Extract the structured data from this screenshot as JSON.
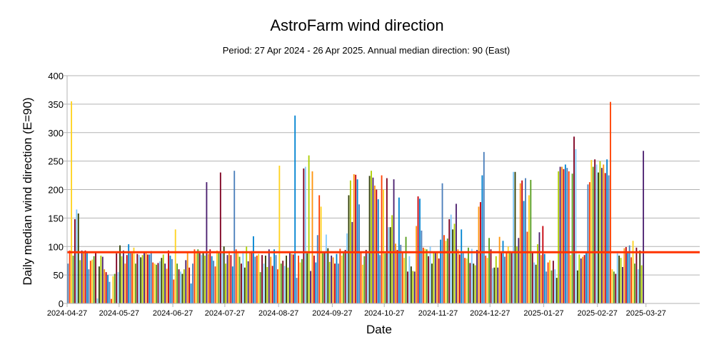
{
  "chart_data": {
    "type": "bar",
    "title": "AstroFarm wind direction",
    "subtitle": "Period: 27 Apr 2024 - 26 Apr 2025. Annual median direction: 90 (East)",
    "xlabel": "Date",
    "ylabel": "Daily median wind direction (E=90)",
    "ylim": [
      0,
      400
    ],
    "yticks": [
      0,
      50,
      100,
      150,
      200,
      250,
      300,
      350,
      400
    ],
    "x_start": "2024-04-27",
    "x_end": "2025-04-26",
    "xticks": [
      "2024-04-27",
      "2024-05-27",
      "2024-06-27",
      "2024-07-27",
      "2024-08-27",
      "2024-09-27",
      "2024-10-27",
      "2024-11-27",
      "2024-12-27",
      "2025-01-27",
      "2025-02-27",
      "2025-03-27"
    ],
    "grid": true,
    "legend": "none",
    "reference_line": {
      "value": 90,
      "color": "#ff3300"
    },
    "bar_colors": [
      "#4a7ebb",
      "#ff4000",
      "#ffd320",
      "#579d1c",
      "#7e0021",
      "#83caff",
      "#314004",
      "#aecf00",
      "#4b1f6f",
      "#ff950e",
      "#c5000b",
      "#0084d1"
    ],
    "values": [
      70,
      93,
      355,
      84,
      148,
      165,
      158,
      76,
      93,
      89,
      93,
      91,
      60,
      75,
      77,
      83,
      90,
      9,
      65,
      84,
      82,
      60,
      55,
      50,
      38,
      8,
      48,
      52,
      88,
      55,
      102,
      83,
      93,
      70,
      85,
      104,
      90,
      88,
      98,
      70,
      87,
      85,
      81,
      85,
      90,
      90,
      86,
      86,
      92,
      72,
      70,
      68,
      71,
      74,
      80,
      86,
      70,
      61,
      93,
      84,
      78,
      42,
      130,
      70,
      60,
      56,
      52,
      60,
      76,
      90,
      63,
      35,
      70,
      95,
      92,
      95,
      92,
      85,
      90,
      84,
      213,
      87,
      95,
      83,
      75,
      65,
      93,
      90,
      230,
      88,
      100,
      70,
      85,
      92,
      85,
      65,
      233,
      95,
      90,
      82,
      70,
      92,
      63,
      100,
      74,
      90,
      92,
      118,
      82,
      84,
      87,
      55,
      85,
      70,
      84,
      64,
      95,
      82,
      66,
      95,
      85,
      60,
      242,
      70,
      75,
      66,
      84,
      63,
      90,
      87,
      86,
      330,
      45,
      84,
      72,
      78,
      237,
      240,
      88,
      260,
      57,
      232,
      84,
      72,
      120,
      190,
      170,
      88,
      90,
      121,
      97,
      73,
      84,
      81,
      70,
      87,
      70,
      96,
      84,
      90,
      94,
      123,
      190,
      216,
      143,
      227,
      226,
      218,
      174,
      90,
      68,
      83,
      94,
      88,
      224,
      233,
      221,
      207,
      200,
      183,
      85,
      225,
      200,
      88,
      220,
      134,
      134,
      155,
      218,
      105,
      94,
      186,
      103,
      90,
      80,
      117,
      56,
      83,
      65,
      57,
      56,
      136,
      188,
      184,
      128,
      98,
      96,
      95,
      83,
      100,
      70,
      89,
      90,
      89,
      79,
      112,
      211,
      120,
      110,
      114,
      148,
      156,
      130,
      140,
      175,
      95,
      86,
      130,
      89,
      80,
      79,
      98,
      71,
      96,
      70,
      67,
      94,
      170,
      178,
      225,
      266,
      84,
      80,
      115,
      95,
      62,
      63,
      83,
      63,
      117,
      90,
      110,
      82,
      89,
      100,
      92,
      90,
      231,
      231,
      100,
      115,
      211,
      216,
      180,
      220,
      126,
      190,
      217,
      89,
      72,
      68,
      104,
      125,
      85,
      136,
      87,
      56,
      72,
      76,
      58,
      75,
      60,
      45,
      232,
      240,
      240,
      236,
      244,
      238,
      232,
      85,
      228,
      293,
      271,
      58,
      86,
      79,
      82,
      85,
      90,
      209,
      213,
      252,
      240,
      253,
      244,
      230,
      250,
      238,
      244,
      229,
      253,
      225,
      354,
      60,
      56,
      52,
      88,
      84,
      80,
      64,
      97,
      99,
      91,
      102,
      81,
      110,
      70,
      98,
      60,
      93,
      67,
      268
    ]
  }
}
